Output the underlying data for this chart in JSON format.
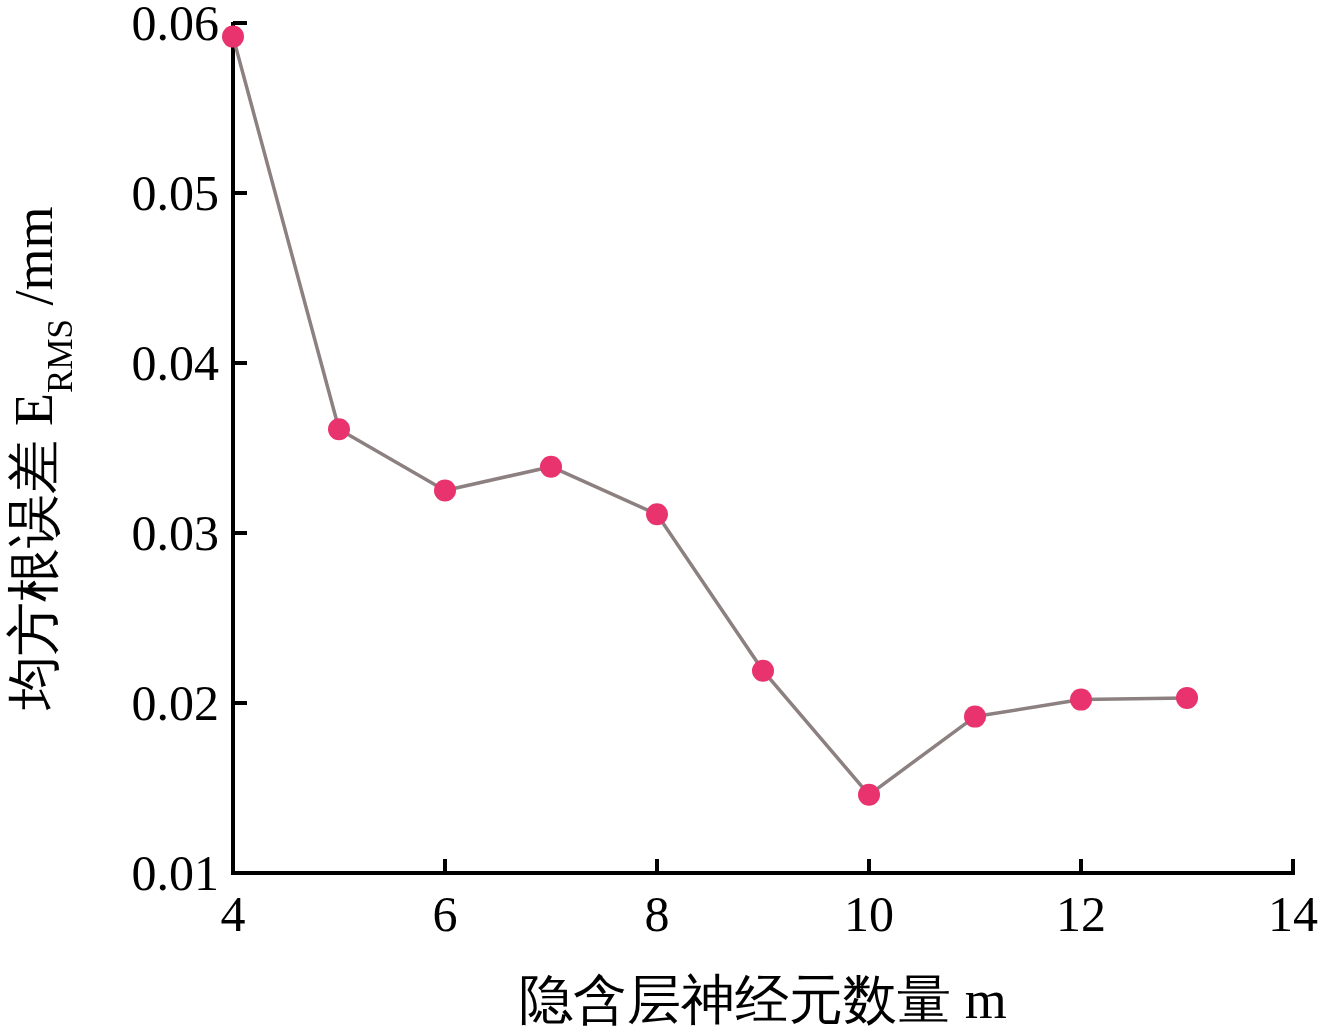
{
  "chart_data": {
    "type": "line",
    "xlabel": "隐含层神经元数量 m",
    "ylabel": "均方根误差 E$_{RMS}$ /mm",
    "x": [
      4,
      5,
      6,
      7,
      8,
      9,
      10,
      11,
      12,
      13
    ],
    "series": [
      {
        "color": "#8c8080",
        "colors": [
          "#e8336e",
          "#e8336e",
          "#e8336e",
          "#e8336e",
          "#e8336e",
          "#e8336e",
          "#e8336e",
          "#e8336e",
          "#e8336e",
          "#e8336e"
        ],
        "values": [
          0.0592,
          0.0361,
          0.0325,
          0.0339,
          0.0311,
          0.0219,
          0.0146,
          0.0192,
          0.0202,
          0.0203
        ]
      }
    ],
    "xlim": [
      4,
      14
    ],
    "xticks": [
      4,
      6,
      8,
      10,
      12,
      14
    ],
    "ylim": [
      0.01,
      0.06
    ],
    "yticks": [
      0.01,
      0.02,
      0.03,
      0.04,
      0.05,
      0.06
    ],
    "marker": "circle",
    "line_style": "solid",
    "grid": false
  }
}
